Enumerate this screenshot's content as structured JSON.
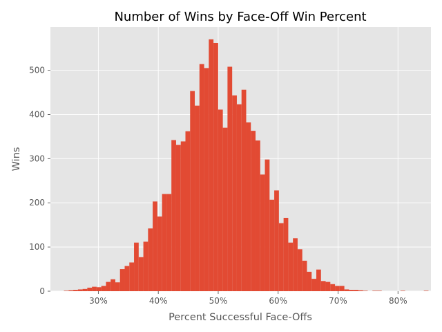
{
  "chart_data": {
    "type": "bar",
    "title": "Number of Wins by Face-Off Win Percent",
    "xlabel": "Percent Successful Face-Offs",
    "ylabel": "Wins",
    "xlim": [
      22.0,
      85.5
    ],
    "ylim": [
      0,
      598
    ],
    "x_ticks": [
      {
        "value": 30,
        "label": "30%"
      },
      {
        "value": 40,
        "label": "40%"
      },
      {
        "value": 50,
        "label": "50%"
      },
      {
        "value": 60,
        "label": "60%"
      },
      {
        "value": 70,
        "label": "70%"
      },
      {
        "value": 80,
        "label": "80%"
      }
    ],
    "y_ticks": [
      {
        "value": 0,
        "label": "0"
      },
      {
        "value": 100,
        "label": "100"
      },
      {
        "value": 200,
        "label": "200"
      },
      {
        "value": 300,
        "label": "300"
      },
      {
        "value": 400,
        "label": "400"
      },
      {
        "value": 500,
        "label": "500"
      }
    ],
    "bin_width": 0.78,
    "bin_start": 24.25,
    "values": [
      1,
      2,
      3,
      4,
      5,
      8,
      10,
      9,
      12,
      21,
      27,
      20,
      50,
      57,
      65,
      110,
      77,
      112,
      142,
      203,
      169,
      220,
      220,
      342,
      331,
      339,
      362,
      453,
      420,
      514,
      505,
      570,
      562,
      411,
      370,
      508,
      443,
      423,
      456,
      382,
      363,
      341,
      264,
      298,
      207,
      228,
      154,
      166,
      110,
      120,
      95,
      69,
      44,
      28,
      49,
      23,
      21,
      16,
      12,
      12,
      4,
      3,
      3,
      2,
      1,
      0,
      1,
      1,
      0,
      0,
      0,
      0,
      1,
      0,
      0,
      0,
      0,
      1
    ],
    "grid": true,
    "colors": {
      "bar": "#E24A33",
      "background": "#E5E5E5",
      "grid": "#FFFFFF",
      "text": "#555555",
      "title": "#000000"
    }
  }
}
